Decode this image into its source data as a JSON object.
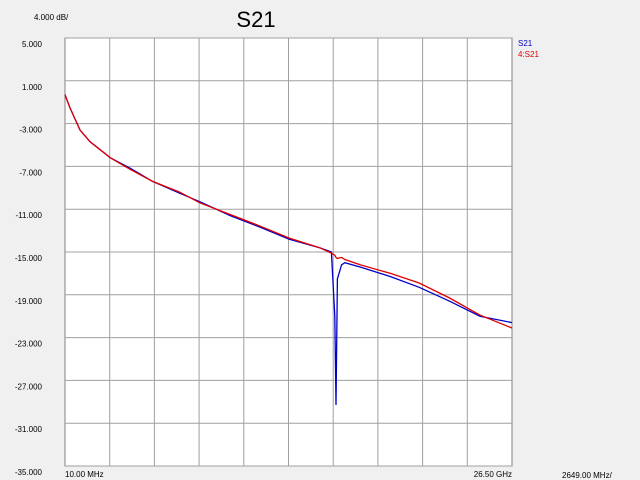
{
  "chart_data": {
    "type": "line",
    "title": "S21",
    "scale_label": "4.000 dB/",
    "x_scale_label": "2649.00 MHz/",
    "x": [
      0.01,
      0.3,
      0.9,
      1.5,
      2.7,
      3.9,
      5.2,
      6.8,
      8.0,
      9.8,
      11.6,
      13.3,
      15.1,
      15.8,
      16.0,
      16.07,
      16.15,
      16.4,
      16.6,
      17.5,
      19.3,
      21.0,
      22.8,
      24.6,
      26.5
    ],
    "series": [
      {
        "name": "S21",
        "color": "#0000c8",
        "values": [
          -0.3,
          -1.5,
          -3.6,
          -4.7,
          -6.2,
          -7.2,
          -8.4,
          -9.5,
          -10.3,
          -11.6,
          -12.7,
          -13.8,
          -14.6,
          -15.0,
          -21.0,
          -29.3,
          -17.5,
          -16.2,
          -16.0,
          -16.4,
          -17.3,
          -18.3,
          -19.6,
          -21.0,
          -21.6
        ]
      },
      {
        "name": "4:S21",
        "color": "#e00000",
        "values": [
          -0.3,
          -1.5,
          -3.6,
          -4.7,
          -6.2,
          -7.3,
          -8.4,
          -9.4,
          -10.4,
          -11.5,
          -12.6,
          -13.7,
          -14.6,
          -15.1,
          -15.3,
          -15.5,
          -15.6,
          -15.5,
          -15.7,
          -16.2,
          -17.0,
          -17.9,
          -19.3,
          -20.9,
          -22.1
        ]
      }
    ],
    "xlim": [
      0.01,
      26.5
    ],
    "x_divisions": 10,
    "xticks": [
      {
        "value": 0.01,
        "label": "10.00 MHz"
      },
      {
        "value": 26.5,
        "label": "26.50 GHz"
      }
    ],
    "ylim": [
      -35,
      5
    ],
    "yticks": [
      {
        "value": 5,
        "label": "5.000"
      },
      {
        "value": 1,
        "label": "1.000"
      },
      {
        "value": -3,
        "label": "-3.000"
      },
      {
        "value": -7,
        "label": "-7.000"
      },
      {
        "value": -11,
        "label": "-11.000"
      },
      {
        "value": -15,
        "label": "-15.000"
      },
      {
        "value": -19,
        "label": "-19.000"
      },
      {
        "value": -23,
        "label": "-23.000"
      },
      {
        "value": -27,
        "label": "-27.000"
      },
      {
        "value": -31,
        "label": "-31.000"
      },
      {
        "value": -35,
        "label": "-35.000"
      }
    ],
    "grid": true
  }
}
